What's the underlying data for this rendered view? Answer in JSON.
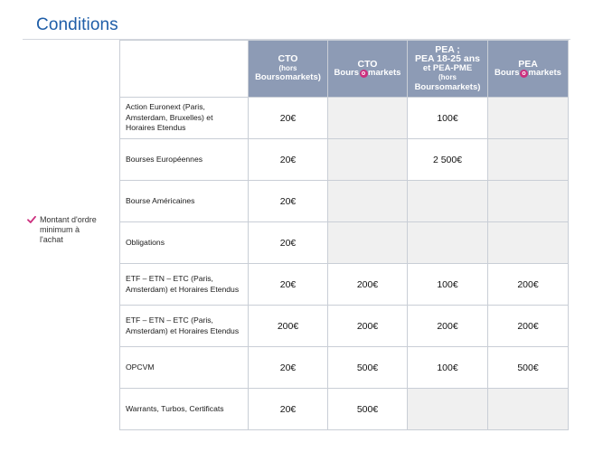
{
  "title": "Conditions",
  "side_label": "Montant d'ordre minimum à l'achat",
  "colors": {
    "title": "#1f5ea8",
    "header_bg": "#8d9bb5",
    "empty_cell": "#f0f0f0",
    "accent": "#cc2f7e"
  },
  "icons": {
    "check": "check-icon"
  },
  "headers": [
    {
      "line1": "CTO",
      "line2": "(hors",
      "line3": "Boursomarkets)"
    },
    {
      "line1": "CTO",
      "brand_pre": "Bours",
      "brand_o": "o",
      "brand_post": "markets"
    },
    {
      "line1": "PEA ;",
      "line2": "PEA 18-25 ans",
      "line3": "et PEA-PME",
      "line4": "(hors",
      "line5": "Boursomarkets)"
    },
    {
      "line1": "PEA",
      "brand_pre": "Bours",
      "brand_o": "o",
      "brand_post": "markets"
    }
  ],
  "rows": [
    {
      "label": "Action Euronext (Paris, Amsterdam, Bruxelles) et Horaires Etendus",
      "values": [
        "20€",
        "",
        "100€",
        ""
      ]
    },
    {
      "label": "Bourses Européennes",
      "values": [
        "20€",
        "",
        "2 500€",
        ""
      ]
    },
    {
      "label": "Bourse Américaines",
      "values": [
        "20€",
        "",
        "",
        ""
      ]
    },
    {
      "label": "Obligations",
      "values": [
        "20€",
        "",
        "",
        ""
      ]
    },
    {
      "label": "ETF – ETN – ETC (Paris, Amsterdam) et Horaires Etendus",
      "values": [
        "20€",
        "200€",
        "100€",
        "200€"
      ]
    },
    {
      "label": "ETF – ETN – ETC (Paris, Amsterdam) et Horaires Etendus",
      "values": [
        "200€",
        "200€",
        "200€",
        "200€"
      ]
    },
    {
      "label": "OPCVM",
      "values": [
        "20€",
        "500€",
        "100€",
        "500€"
      ]
    },
    {
      "label": "Warrants, Turbos, Certificats",
      "values": [
        "20€",
        "500€",
        "",
        ""
      ]
    }
  ]
}
